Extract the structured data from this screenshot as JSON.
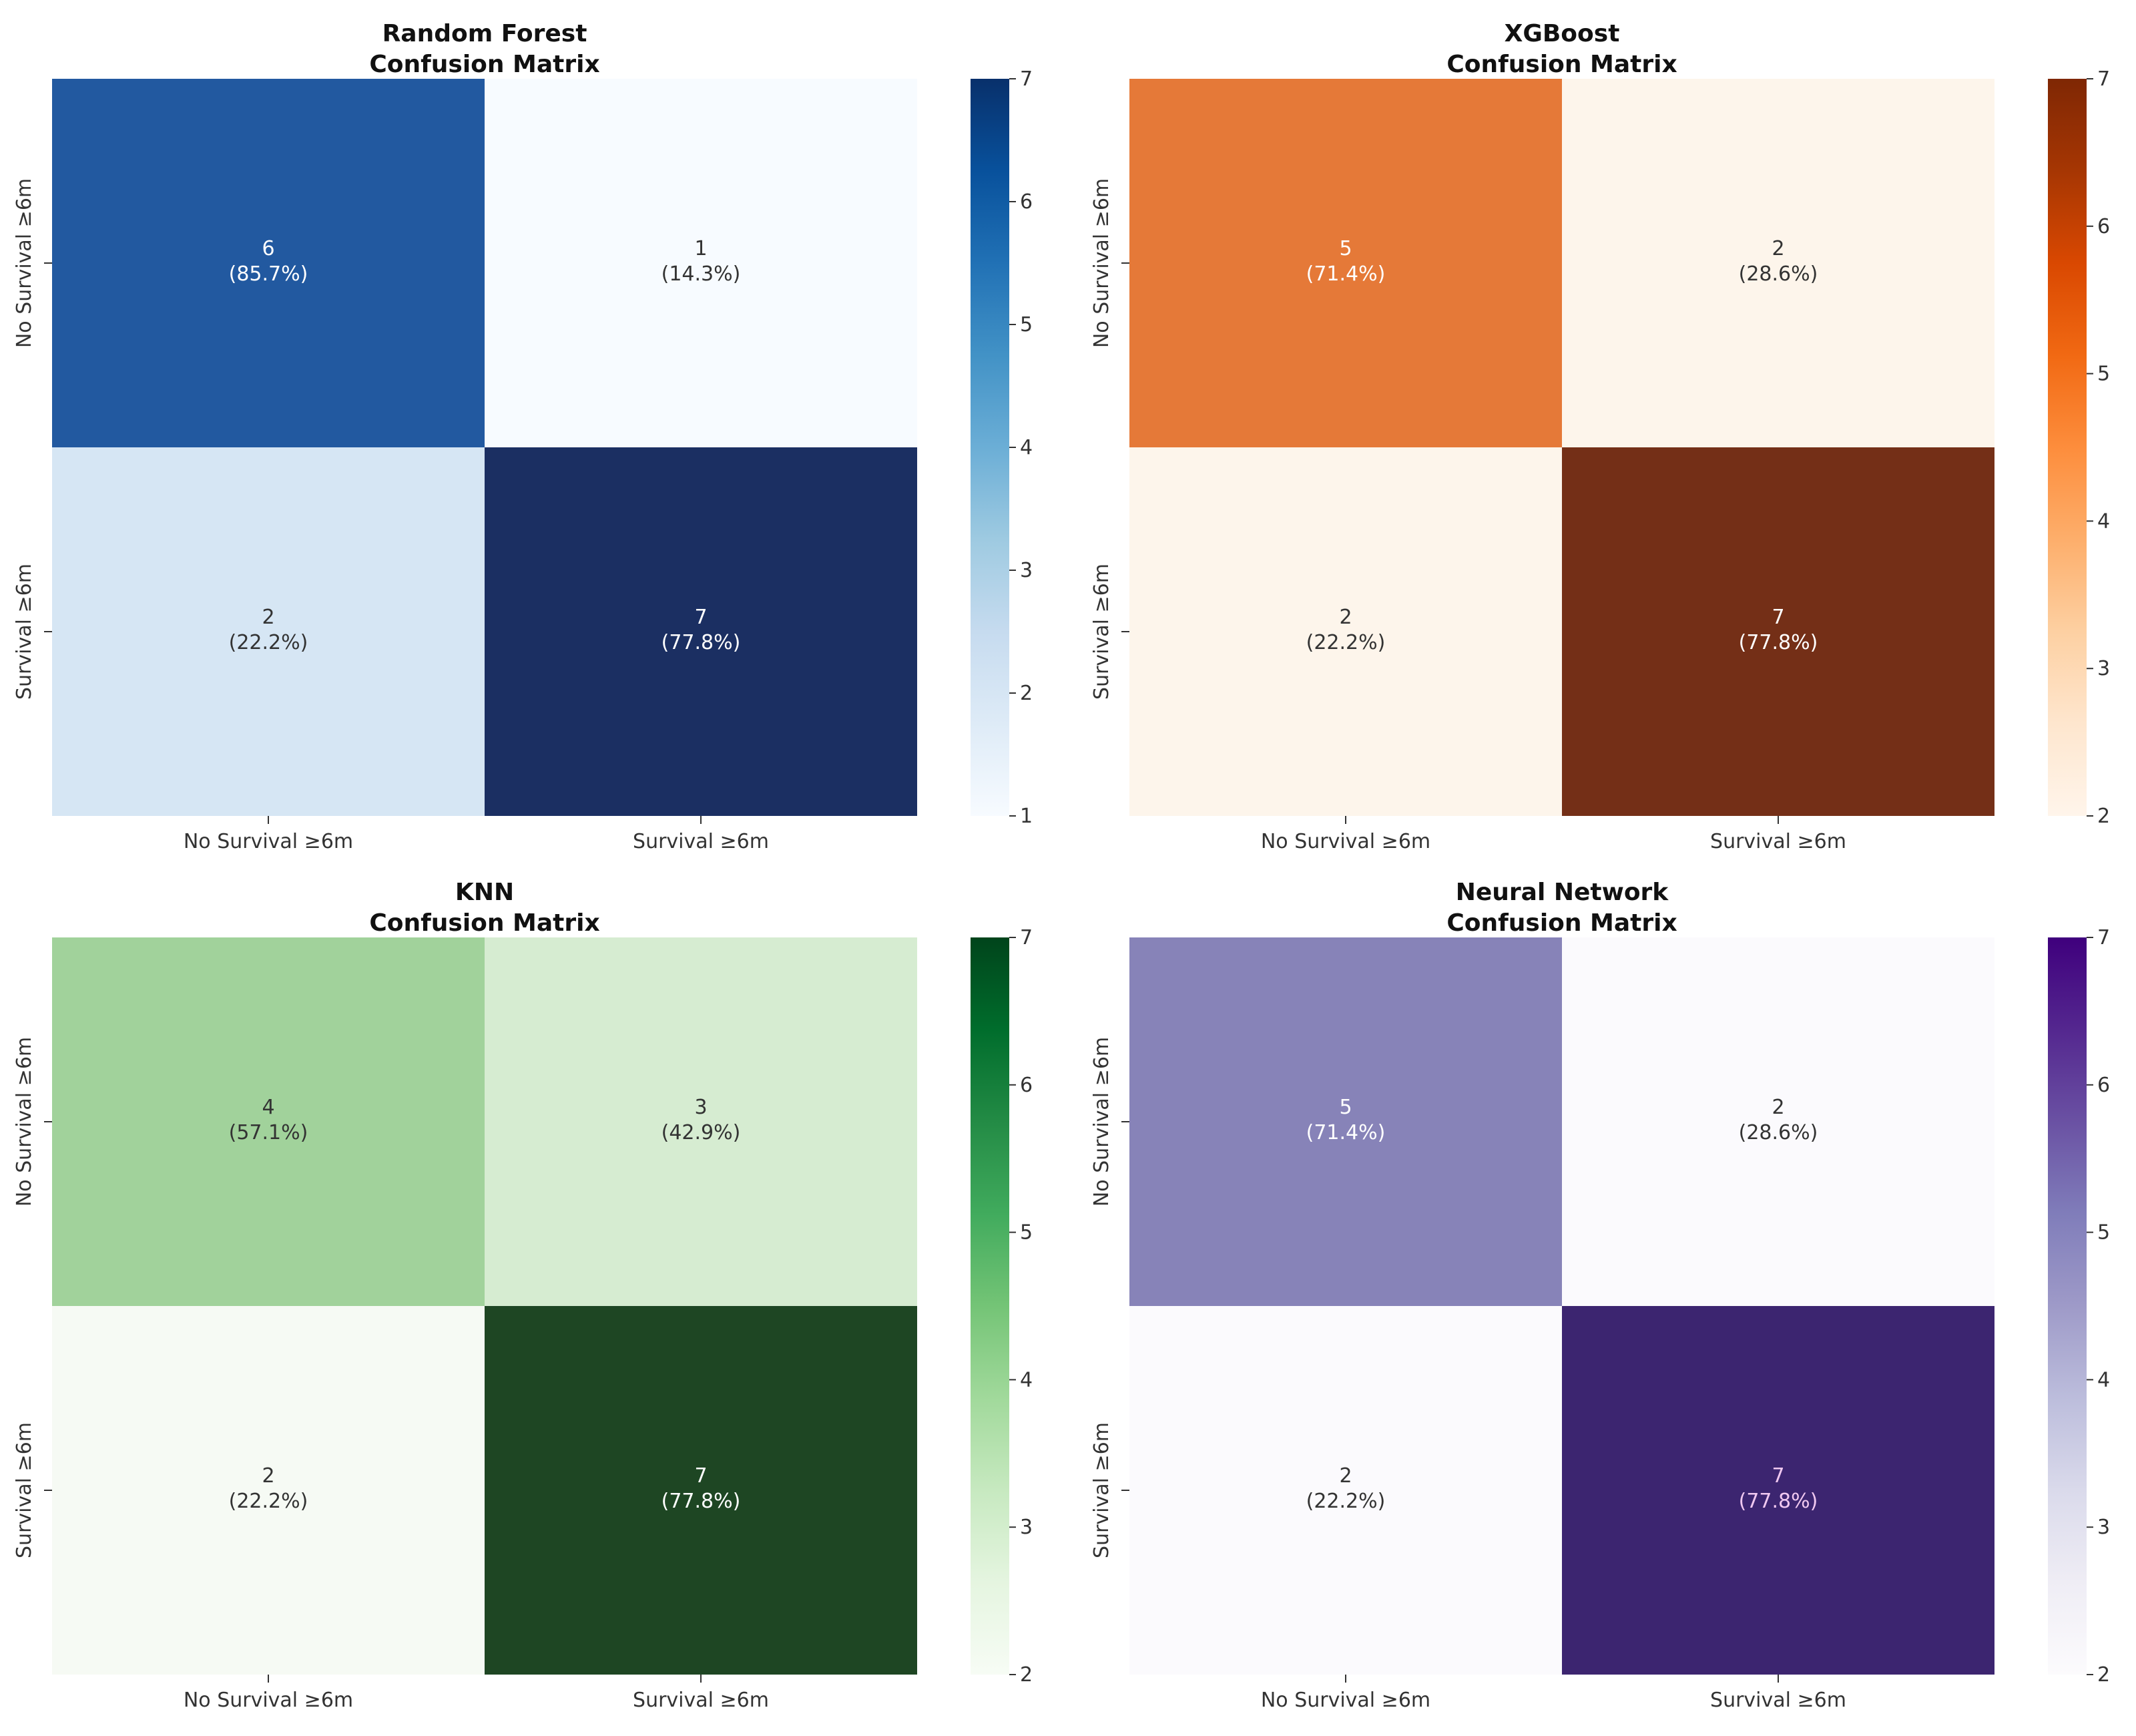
{
  "chart_data": [
    {
      "type": "heatmap",
      "title_line1": "Random Forest",
      "title_line2": "Confusion Matrix",
      "xlabels": [
        "No Survival ≥6m",
        "Survival ≥6m"
      ],
      "ylabels": [
        "No Survival ≥6m",
        "Survival ≥6m"
      ],
      "values": [
        [
          6,
          1
        ],
        [
          2,
          7
        ]
      ],
      "percents": [
        [
          "(85.7%)",
          "(14.3%)"
        ],
        [
          "(22.2%)",
          "(77.8%)"
        ]
      ],
      "colormap": "Blues",
      "colors": [
        "#f7fbff",
        "#deebf7",
        "#c6dbef",
        "#9ecae1",
        "#6baed6",
        "#4292c6",
        "#2171b5",
        "#08519c",
        "#08306b"
      ],
      "cell_colors": [
        [
          "#2259a0",
          "#f7fbff"
        ],
        [
          "#d6e6f4",
          "#1b2f62"
        ]
      ],
      "text_colors": [
        [
          "#ffffff",
          "#333333"
        ],
        [
          "#333333",
          "#ffffff"
        ]
      ],
      "colorbar_range": [
        1,
        7
      ],
      "colorbar_ticks": [
        1,
        2,
        3,
        4,
        5,
        6,
        7
      ]
    },
    {
      "type": "heatmap",
      "title_line1": "XGBoost",
      "title_line2": "Confusion Matrix",
      "xlabels": [
        "No Survival ≥6m",
        "Survival ≥6m"
      ],
      "ylabels": [
        "No Survival ≥6m",
        "Survival ≥6m"
      ],
      "values": [
        [
          5,
          2
        ],
        [
          2,
          7
        ]
      ],
      "percents": [
        [
          "(71.4%)",
          "(28.6%)"
        ],
        [
          "(22.2%)",
          "(77.8%)"
        ]
      ],
      "colormap": "Oranges",
      "colors": [
        "#fff5eb",
        "#fee6ce",
        "#fdd0a2",
        "#fdae6b",
        "#fd8d3c",
        "#f16913",
        "#d94801",
        "#a63603",
        "#7f2704"
      ],
      "cell_colors": [
        [
          "#e57938",
          "#fdf5eb"
        ],
        [
          "#fdf5eb",
          "#742f17"
        ]
      ],
      "text_colors": [
        [
          "#ffffff",
          "#333333"
        ],
        [
          "#333333",
          "#ffffff"
        ]
      ],
      "colorbar_range": [
        2,
        7
      ],
      "colorbar_ticks": [
        2,
        3,
        4,
        5,
        6,
        7
      ]
    },
    {
      "type": "heatmap",
      "title_line1": "KNN",
      "title_line2": "Confusion Matrix",
      "xlabels": [
        "No Survival ≥6m",
        "Survival ≥6m"
      ],
      "ylabels": [
        "No Survival ≥6m",
        "Survival ≥6m"
      ],
      "values": [
        [
          4,
          3
        ],
        [
          2,
          7
        ]
      ],
      "percents": [
        [
          "(57.1%)",
          "(42.9%)"
        ],
        [
          "(22.2%)",
          "(77.8%)"
        ]
      ],
      "colormap": "Greens",
      "colors": [
        "#f7fcf5",
        "#e5f5e0",
        "#c7e9c0",
        "#a1d99b",
        "#74c476",
        "#41ab5d",
        "#238b45",
        "#006d2c",
        "#00441b"
      ],
      "cell_colors": [
        [
          "#a1d29b",
          "#d6ecd1"
        ],
        [
          "#f6faf4",
          "#1e4623"
        ]
      ],
      "text_colors": [
        [
          "#333333",
          "#333333"
        ],
        [
          "#333333",
          "#ffffff"
        ]
      ],
      "colorbar_range": [
        2,
        7
      ],
      "colorbar_ticks": [
        2,
        3,
        4,
        5,
        6,
        7
      ]
    },
    {
      "type": "heatmap",
      "title_line1": "Neural Network",
      "title_line2": "Confusion Matrix",
      "xlabels": [
        "No Survival ≥6m",
        "Survival ≥6m"
      ],
      "ylabels": [
        "No Survival ≥6m",
        "Survival ≥6m"
      ],
      "values": [
        [
          5,
          2
        ],
        [
          2,
          7
        ]
      ],
      "percents": [
        [
          "(71.4%)",
          "(28.6%)"
        ],
        [
          "(22.2%)",
          "(77.8%)"
        ]
      ],
      "colormap": "Purples",
      "colors": [
        "#fcfbfd",
        "#efedf5",
        "#dadaeb",
        "#bcbddc",
        "#9e9ac8",
        "#807dba",
        "#6a51a3",
        "#54278f",
        "#3f007d"
      ],
      "cell_colors": [
        [
          "#8783b8",
          "#fbfafd"
        ],
        [
          "#fbfafd",
          "#3c2570"
        ]
      ],
      "text_colors": [
        [
          "#ffffff",
          "#333333"
        ],
        [
          "#333333",
          "#f0c8f0"
        ]
      ],
      "colorbar_range": [
        2,
        7
      ],
      "colorbar_ticks": [
        2,
        3,
        4,
        5,
        6,
        7
      ]
    }
  ]
}
